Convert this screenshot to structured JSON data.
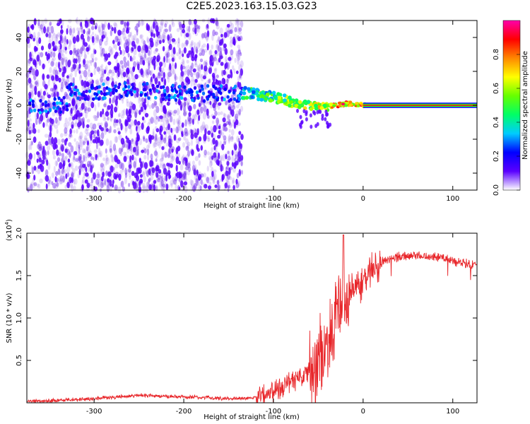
{
  "title": "C2E5.2023.163.15.03.G23",
  "colors": {
    "spectrogram_hot": "#e8102a",
    "snr_line": "#e8262a",
    "axes": "#000000"
  },
  "chart_data": [
    {
      "type": "heatmap",
      "xlabel": "Height of straight line (km)",
      "ylabel": "Frequency (Hz)",
      "xlim": [
        -375,
        127
      ],
      "ylim": [
        -50,
        50
      ],
      "xticks": [
        -300,
        -200,
        -100,
        0,
        100
      ],
      "xtick_labels": [
        "-300",
        "-200",
        "-100",
        "0",
        "100"
      ],
      "yticks": [
        -40,
        -20,
        0,
        20,
        40
      ],
      "ytick_labels": [
        "-40",
        "-20",
        "0",
        "20",
        "40"
      ],
      "colorbar": {
        "label": "Normalized spectral amplitude",
        "range": [
          0,
          1
        ],
        "ticks": [
          0.0,
          0.2,
          0.4,
          0.6,
          0.8
        ],
        "tick_labels": [
          "0.0",
          "0.2",
          "0.4",
          "0.6",
          "0.8"
        ],
        "stops": [
          "#ffffff",
          "#5a00ff",
          "#0000ff",
          "#00ccff",
          "#00ff66",
          "#66ff00",
          "#ffff00",
          "#ff8800",
          "#ff0000",
          "#ff00aa"
        ]
      },
      "ridge": [
        {
          "x": -330,
          "f": 8
        },
        {
          "x": -300,
          "f": 8
        },
        {
          "x": -270,
          "f": 9
        },
        {
          "x": -190,
          "f": 7
        },
        {
          "x": -130,
          "f": 7
        },
        {
          "x": -100,
          "f": 5
        },
        {
          "x": -80,
          "f": 2
        },
        {
          "x": -60,
          "f": 0
        },
        {
          "x": -40,
          "f": -1
        },
        {
          "x": -20,
          "f": 1
        },
        {
          "x": 0,
          "f": 0
        },
        {
          "x": 127,
          "f": 0
        }
      ]
    },
    {
      "type": "line",
      "xlabel": "Height of straight line (km)",
      "ylabel": "SNR (10 * v/v)",
      "y_multiplier": "(x10",
      "y_multiplier_exp": "4",
      "y_multiplier_close": ")",
      "xlim": [
        -375,
        127
      ],
      "ylim": [
        0,
        2.0
      ],
      "xticks": [
        -300,
        -200,
        -100,
        0,
        100
      ],
      "xtick_labels": [
        "-300",
        "-200",
        "-100",
        "0",
        "100"
      ],
      "yticks": [
        0.5,
        1.0,
        1.5,
        2.0
      ],
      "ytick_labels": [
        "0.5",
        "1.0",
        "1.5",
        "2.0"
      ],
      "series": [
        {
          "x": [
            -375,
            -340,
            -300,
            -270,
            -250,
            -230,
            -200,
            -170,
            -150,
            -130,
            -115,
            -100,
            -90,
            -80,
            -70,
            -60,
            -50,
            -45,
            -40,
            -35,
            -30,
            -25,
            -22,
            -20,
            -15,
            -10,
            -5,
            0,
            10,
            20,
            30,
            40,
            50,
            60,
            70,
            80,
            90,
            100,
            110,
            127
          ],
          "y": [
            0.02,
            0.03,
            0.05,
            0.07,
            0.09,
            0.08,
            0.07,
            0.06,
            0.05,
            0.05,
            0.08,
            0.14,
            0.2,
            0.26,
            0.3,
            0.38,
            0.45,
            0.55,
            0.7,
            0.85,
            1.0,
            1.1,
            1.2,
            1.25,
            1.32,
            1.38,
            1.42,
            1.45,
            1.55,
            1.65,
            1.7,
            1.72,
            1.73,
            1.74,
            1.73,
            1.72,
            1.7,
            1.68,
            1.65,
            1.62
          ]
        }
      ]
    }
  ]
}
